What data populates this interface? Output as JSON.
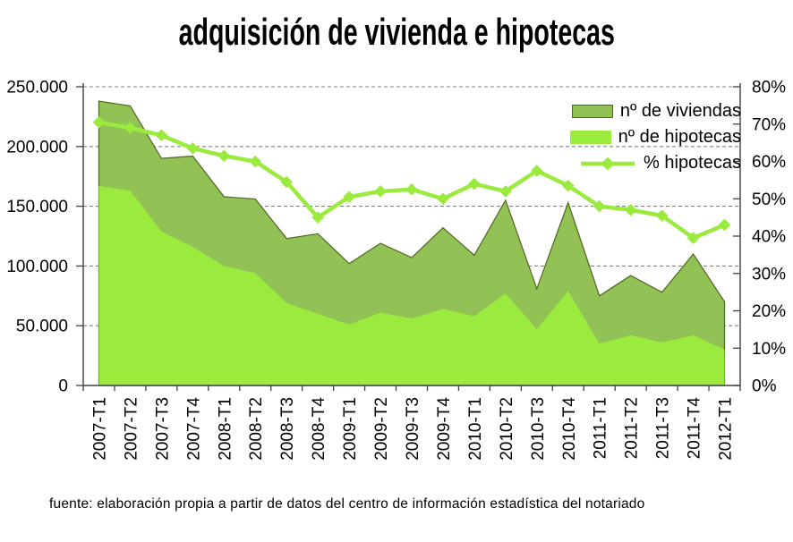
{
  "title": "adquisición de vivienda e hipotecas",
  "source_note": "fuente: elaboración propia a partir de datos del centro de información estadística del notariado",
  "legend": {
    "items": [
      {
        "label": "nº de viviendas",
        "swatch": "area-dark"
      },
      {
        "label": "nº de hipotecas",
        "swatch": "area-bright"
      },
      {
        "label": "% hipotecas",
        "swatch": "line-diamond"
      }
    ]
  },
  "colors": {
    "viviendas_fill": "#92C155",
    "viviendas_border": "#4F661E",
    "hipotecas_fill": "#9AEB3E",
    "line": "#9AEB3E",
    "grid": "#808080",
    "axis": "#404040",
    "text": "#000000"
  },
  "chart_data": {
    "type": "area",
    "categories": [
      "2007-T1",
      "2007-T2",
      "2007-T3",
      "2007-T4",
      "2008-T1",
      "2008-T2",
      "2008-T3",
      "2008-T4",
      "2009-T1",
      "2009-T2",
      "2009-T3",
      "2009-T4",
      "2010-T1",
      "2010-T2",
      "2010-T3",
      "2010-T4",
      "2011-T1",
      "2011-T2",
      "2011-T3",
      "2011-T4",
      "2012-T1"
    ],
    "series": [
      {
        "name": "nº de viviendas",
        "type": "area",
        "axis": "left",
        "values": [
          238000,
          234000,
          190000,
          192000,
          158000,
          156000,
          123000,
          127000,
          102000,
          119000,
          107000,
          132000,
          109000,
          155000,
          81000,
          153000,
          75000,
          92000,
          78000,
          110000,
          70000
        ]
      },
      {
        "name": "nº de hipotecas",
        "type": "area",
        "axis": "left",
        "values": [
          167000,
          163000,
          129000,
          116000,
          100000,
          94000,
          69000,
          60000,
          51000,
          61000,
          56000,
          64000,
          58000,
          77000,
          47000,
          79000,
          35000,
          42000,
          36000,
          42000,
          30000
        ]
      },
      {
        "name": "% hipotecas",
        "type": "line",
        "axis": "right",
        "values": [
          70.5,
          69,
          67,
          63.5,
          61.5,
          60,
          54.5,
          45,
          50.5,
          52,
          52.5,
          50,
          54,
          52,
          57.5,
          53.5,
          48,
          47,
          45.5,
          39.5,
          43
        ]
      }
    ],
    "left_axis": {
      "min": 0,
      "max": 250000,
      "step": 50000,
      "labels": [
        "0",
        "50.000",
        "100.000",
        "150.000",
        "200.000",
        "250.000"
      ]
    },
    "right_axis": {
      "min": 0,
      "max": 80,
      "step": 10,
      "labels": [
        "0%",
        "10%",
        "20%",
        "30%",
        "40%",
        "50%",
        "60%",
        "70%",
        "80%"
      ]
    },
    "grid": "horizontal-dashed",
    "legend_position": "top-right-inside"
  }
}
